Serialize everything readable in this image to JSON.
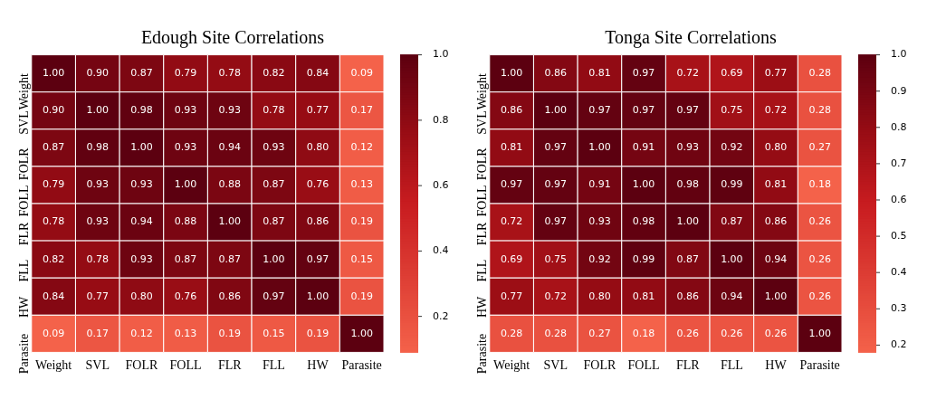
{
  "chart_data": [
    {
      "type": "heatmap",
      "title": "Edough Site Correlations",
      "categories": [
        "Weight",
        "SVL",
        "FOLR",
        "FOLL",
        "FLR",
        "FLL",
        "HW",
        "Parasite"
      ],
      "y_categories": [
        "Weight",
        "SVL",
        "FOLR",
        "FOLL",
        "FLR",
        "FLL",
        "HW",
        "Parasite"
      ],
      "cells": [
        [
          1.0,
          0.9,
          0.87,
          0.79,
          0.78,
          0.82,
          0.84,
          0.09
        ],
        [
          0.9,
          1.0,
          0.98,
          0.93,
          0.93,
          0.78,
          0.77,
          0.17
        ],
        [
          0.87,
          0.98,
          1.0,
          0.93,
          0.94,
          0.93,
          0.8,
          0.12
        ],
        [
          0.79,
          0.93,
          0.93,
          1.0,
          0.88,
          0.87,
          0.76,
          0.13
        ],
        [
          0.78,
          0.93,
          0.94,
          0.88,
          1.0,
          0.87,
          0.86,
          0.19
        ],
        [
          0.82,
          0.78,
          0.93,
          0.87,
          0.87,
          1.0,
          0.97,
          0.15
        ],
        [
          0.84,
          0.77,
          0.8,
          0.76,
          0.86,
          0.97,
          1.0,
          0.19
        ],
        [
          0.09,
          0.17,
          0.12,
          0.13,
          0.19,
          0.15,
          0.19,
          1.0
        ]
      ],
      "cell_labels": [
        [
          "1.00",
          "0.90",
          "0.87",
          "0.79",
          "0.78",
          "0.82",
          "0.84",
          "0.09"
        ],
        [
          "0.90",
          "1.00",
          "0.98",
          "0.93",
          "0.93",
          "0.78",
          "0.77",
          "0.17"
        ],
        [
          "0.87",
          "0.98",
          "1.00",
          "0.93",
          "0.94",
          "0.93",
          "0.80",
          "0.12"
        ],
        [
          "0.79",
          "0.93",
          "0.93",
          "1.00",
          "0.88",
          "0.87",
          "0.76",
          "0.13"
        ],
        [
          "0.78",
          "0.93",
          "0.94",
          "0.88",
          "1.00",
          "0.87",
          "0.86",
          "0.19"
        ],
        [
          "0.82",
          "0.78",
          "0.93",
          "0.87",
          "0.87",
          "1.00",
          "0.97",
          "0.15"
        ],
        [
          "0.84",
          "0.77",
          "0.80",
          "0.76",
          "0.86",
          "0.97",
          "1.00",
          "0.19"
        ],
        [
          "0.09",
          "0.17",
          "0.12",
          "0.13",
          "0.19",
          "0.15",
          "0.19",
          "1.00"
        ]
      ],
      "clim": [
        0.09,
        1.0
      ],
      "cticks": [
        {
          "value": 0.2,
          "label": "0.2"
        },
        {
          "value": 0.4,
          "label": "0.4"
        },
        {
          "value": 0.6,
          "label": "0.6"
        },
        {
          "value": 0.8,
          "label": "0.8"
        },
        {
          "value": 1.0,
          "label": "1.0"
        }
      ],
      "data_labels": true
    },
    {
      "type": "heatmap",
      "title": "Tonga Site Correlations",
      "categories": [
        "Weight",
        "SVL",
        "FOLR",
        "FOLL",
        "FLR",
        "FLL",
        "HW",
        "Parasite"
      ],
      "y_categories": [
        "Weight",
        "SVL",
        "FOLR",
        "FOLL",
        "FLR",
        "FLL",
        "HW",
        "Parasite"
      ],
      "cells": [
        [
          1.0,
          0.86,
          0.81,
          0.97,
          0.72,
          0.69,
          0.77,
          0.28
        ],
        [
          0.86,
          1.0,
          0.97,
          0.97,
          0.97,
          0.75,
          0.72,
          0.28
        ],
        [
          0.81,
          0.97,
          1.0,
          0.91,
          0.93,
          0.92,
          0.8,
          0.27
        ],
        [
          0.97,
          0.97,
          0.91,
          1.0,
          0.98,
          0.99,
          0.81,
          0.18
        ],
        [
          0.72,
          0.97,
          0.93,
          0.98,
          1.0,
          0.87,
          0.86,
          0.26
        ],
        [
          0.69,
          0.75,
          0.92,
          0.99,
          0.87,
          1.0,
          0.94,
          0.26
        ],
        [
          0.77,
          0.72,
          0.8,
          0.81,
          0.86,
          0.94,
          1.0,
          0.26
        ],
        [
          0.28,
          0.28,
          0.27,
          0.18,
          0.26,
          0.26,
          0.26,
          1.0
        ]
      ],
      "cell_labels": [
        [
          "1.00",
          "0.86",
          "0.81",
          "0.97",
          "0.72",
          "0.69",
          "0.77",
          "0.28"
        ],
        [
          "0.86",
          "1.00",
          "0.97",
          "0.97",
          "0.97",
          "0.75",
          "0.72",
          "0.28"
        ],
        [
          "0.81",
          "0.97",
          "1.00",
          "0.91",
          "0.93",
          "0.92",
          "0.80",
          "0.27"
        ],
        [
          "0.97",
          "0.97",
          "0.91",
          "1.00",
          "0.98",
          "0.99",
          "0.81",
          "0.18"
        ],
        [
          "0.72",
          "0.97",
          "0.93",
          "0.98",
          "1.00",
          "0.87",
          "0.86",
          "0.26"
        ],
        [
          "0.69",
          "0.75",
          "0.92",
          "0.99",
          "0.87",
          "1.00",
          "0.94",
          "0.26"
        ],
        [
          "0.77",
          "0.72",
          "0.80",
          "0.81",
          "0.86",
          "0.94",
          "1.00",
          "0.26"
        ],
        [
          "0.28",
          "0.28",
          "0.27",
          "0.18",
          "0.26",
          "0.26",
          "0.26",
          "1.00"
        ]
      ],
      "clim": [
        0.18,
        1.0
      ],
      "cticks": [
        {
          "value": 0.2,
          "label": "0.2"
        },
        {
          "value": 0.3,
          "label": "0.3"
        },
        {
          "value": 0.4,
          "label": "0.4"
        },
        {
          "value": 0.5,
          "label": "0.5"
        },
        {
          "value": 0.6,
          "label": "0.6"
        },
        {
          "value": 0.7,
          "label": "0.7"
        },
        {
          "value": 0.8,
          "label": "0.8"
        },
        {
          "value": 0.9,
          "label": "0.9"
        },
        {
          "value": 1.0,
          "label": "1.0"
        }
      ],
      "data_labels": true
    }
  ]
}
